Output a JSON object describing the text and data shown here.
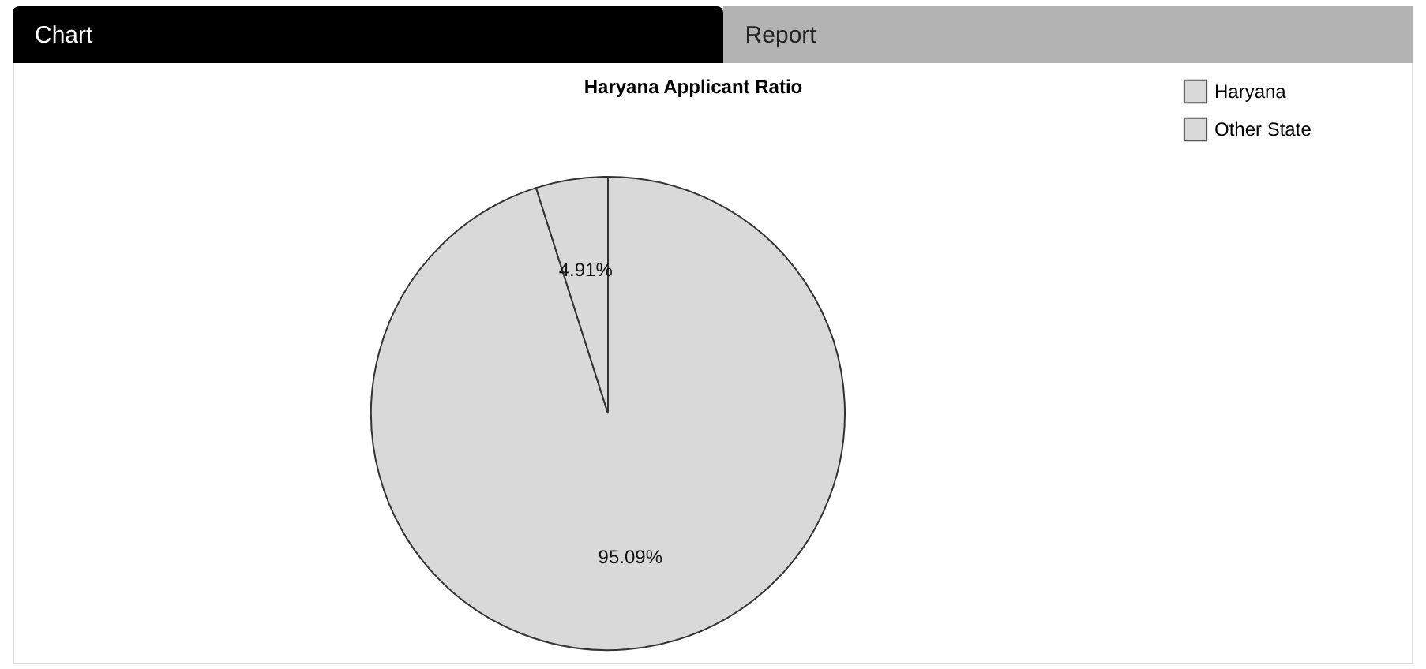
{
  "chart_data": {
    "type": "pie",
    "title": "Haryana Applicant Ratio",
    "categories": [
      "Haryana",
      "Other State"
    ],
    "values": [
      95.09,
      4.91
    ],
    "colors": [
      "#d9d9d9",
      "#d9d9d9"
    ],
    "value_labels": [
      "95.09%",
      "4.91%"
    ],
    "legend": "top right",
    "annotations": [
      "Chart",
      "Report"
    ]
  }
}
